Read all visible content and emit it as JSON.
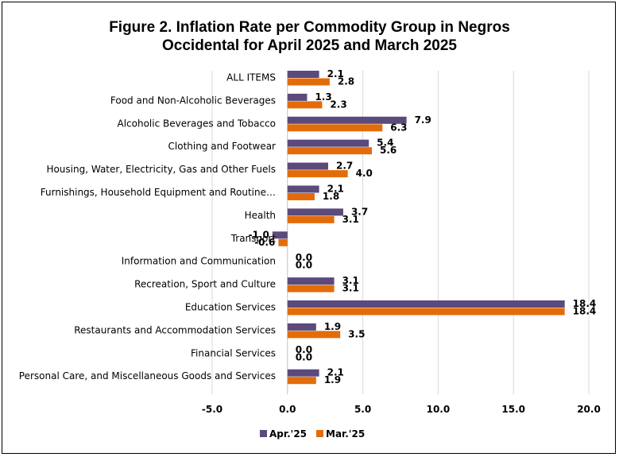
{
  "chart_data": {
    "type": "bar",
    "orientation": "horizontal",
    "title_line1": "Figure 2. Inflation Rate per Commodity Group in Negros",
    "title_line2": "Occidental for April 2025 and March 2025",
    "categories": [
      "ALL ITEMS",
      "Food and Non-Alcoholic Beverages",
      "Alcoholic Beverages and Tobacco",
      "Clothing and Footwear",
      "Housing, Water, Electricity, Gas and Other Fuels",
      "Furnishings, Household Equipment and Routine…",
      "Health",
      "Transport",
      "Information and Communication",
      "Recreation, Sport and Culture",
      "Education Services",
      "Restaurants and Accommodation Services",
      "Financial Services",
      "Personal Care, and Miscellaneous Goods and Services"
    ],
    "series": [
      {
        "name": "Apr.'25",
        "color": "#5b4a7c",
        "values": [
          2.1,
          1.3,
          7.9,
          5.4,
          2.7,
          2.1,
          3.7,
          -1.0,
          0.0,
          3.1,
          18.4,
          1.9,
          0.0,
          2.1
        ],
        "labels": [
          "2.1",
          "1.3",
          "7.9",
          "5.4",
          "2.7",
          "2.1",
          "3.7",
          "-1.0",
          "0.0",
          "3.1",
          "18.4",
          "1.9",
          "0.0",
          "2.1"
        ]
      },
      {
        "name": "Mar.'25",
        "color": "#e36c0a",
        "values": [
          2.8,
          2.3,
          6.3,
          5.6,
          4.0,
          1.8,
          3.1,
          -0.6,
          0.0,
          3.1,
          18.4,
          3.5,
          0.0,
          1.9
        ],
        "labels": [
          "2.8",
          "2.3",
          "6.3",
          "5.6",
          "4.0",
          "1.8",
          "3.1",
          "-0.6",
          "0.0",
          "3.1",
          "18.4",
          "3.5",
          "0.0",
          "1.9"
        ]
      }
    ],
    "xlim": [
      -5,
      20
    ],
    "xticks": [
      -5,
      0,
      5,
      10,
      15,
      20
    ],
    "xtick_labels": [
      "-5.0",
      "0.0",
      "5.0",
      "10.0",
      "15.0",
      "20.0"
    ],
    "grid": "vertical",
    "legend": "bottom"
  }
}
